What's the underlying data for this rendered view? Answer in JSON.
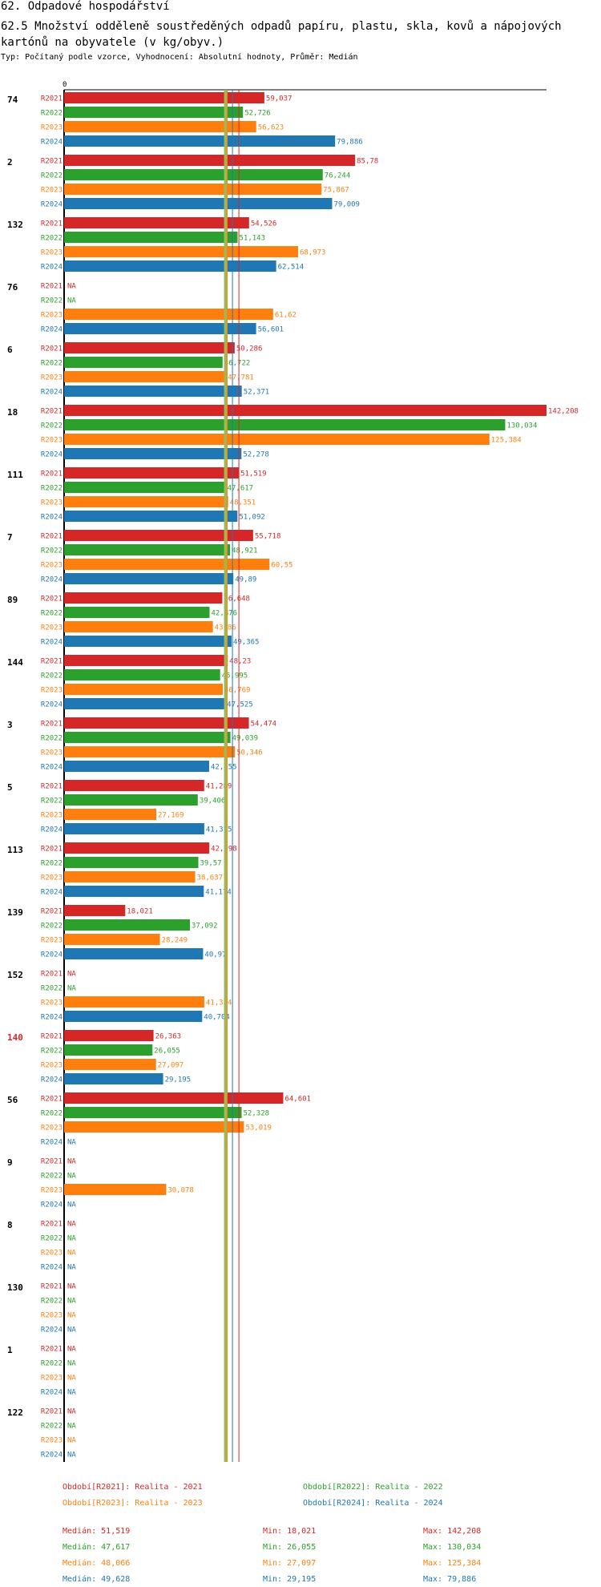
{
  "header": {
    "title": "62. Odpadové hospodářství",
    "subtitle": "62.5 Množství odděleně soustředěných odpadů papíru, plastu, skla, kovů a nápojových kartónů na obyvatele (v kg/obyv.)",
    "info": "Typ: Počítaný podle vzorce, Vyhodnocení: Absolutní hodnoty, Průměr: Medián"
  },
  "colors": {
    "R2021": "#d62728",
    "R2022": "#2ca02c",
    "R2023": "#ff7f0e",
    "R2024": "#1f77b4",
    "highlight_label": "#d62728",
    "median_line": "#9aba59"
  },
  "chart_data": {
    "type": "bar",
    "orientation": "horizontal",
    "axis_zero_label": "0",
    "na_label": "NA",
    "xlim": [
      0,
      142.208
    ],
    "series_names": [
      "R2021",
      "R2022",
      "R2023",
      "R2024"
    ],
    "highlighted_group": "140",
    "groups": [
      {
        "label": "74",
        "values": [
          59.037,
          52.726,
          56.623,
          79.886
        ]
      },
      {
        "label": "2",
        "values": [
          85.78,
          76.244,
          75.867,
          79.009
        ]
      },
      {
        "label": "132",
        "values": [
          54.526,
          51.143,
          68.973,
          62.514
        ]
      },
      {
        "label": "76",
        "values": [
          null,
          null,
          61.62,
          56.601
        ]
      },
      {
        "label": "6",
        "values": [
          50.286,
          46.722,
          47.781,
          52.371
        ]
      },
      {
        "label": "18",
        "values": [
          142.208,
          130.034,
          125.384,
          52.278
        ]
      },
      {
        "label": "111",
        "values": [
          51.519,
          47.617,
          48.351,
          51.092
        ]
      },
      {
        "label": "7",
        "values": [
          55.718,
          48.921,
          60.55,
          49.89
        ]
      },
      {
        "label": "89",
        "values": [
          46.648,
          42.876,
          43.86,
          49.365
        ]
      },
      {
        "label": "144",
        "values": [
          48.23,
          45.995,
          46.769,
          47.525
        ]
      },
      {
        "label": "3",
        "values": [
          54.474,
          49.039,
          50.346,
          42.755
        ]
      },
      {
        "label": "5",
        "values": [
          41.289,
          39.406,
          27.169,
          41.315
        ]
      },
      {
        "label": "113",
        "values": [
          42.798,
          39.57,
          38.637,
          41.174
        ]
      },
      {
        "label": "139",
        "values": [
          18.021,
          37.092,
          28.249,
          40.97
        ]
      },
      {
        "label": "152",
        "values": [
          null,
          null,
          41.324,
          40.704
        ]
      },
      {
        "label": "140",
        "values": [
          26.363,
          26.055,
          27.097,
          29.195
        ]
      },
      {
        "label": "56",
        "values": [
          64.601,
          52.328,
          53.019,
          null
        ]
      },
      {
        "label": "9",
        "values": [
          null,
          null,
          30.078,
          null
        ]
      },
      {
        "label": "8",
        "values": [
          null,
          null,
          null,
          null
        ]
      },
      {
        "label": "130",
        "values": [
          null,
          null,
          null,
          null
        ]
      },
      {
        "label": "1",
        "values": [
          null,
          null,
          null,
          null
        ]
      },
      {
        "label": "122",
        "values": [
          null,
          null,
          null,
          null
        ]
      }
    ],
    "medians": [
      51.519,
      47.617,
      48.066,
      49.628
    ]
  },
  "legend": {
    "periods": [
      "Období[R2021]: Realita - 2021",
      "Období[R2022]: Realita - 2022",
      "Období[R2023]: Realita - 2023",
      "Období[R2024]: Realita - 2024"
    ],
    "stats": [
      {
        "median": "Medián: 51,519",
        "min": "Min: 18,021",
        "max": "Max: 142,208"
      },
      {
        "median": "Medián: 47,617",
        "min": "Min: 26,055",
        "max": "Max: 130,034"
      },
      {
        "median": "Medián: 48,066",
        "min": "Min: 27,097",
        "max": "Max: 125,384"
      },
      {
        "median": "Medián: 49,628",
        "min": "Min: 29,195",
        "max": "Max: 79,886"
      }
    ]
  }
}
